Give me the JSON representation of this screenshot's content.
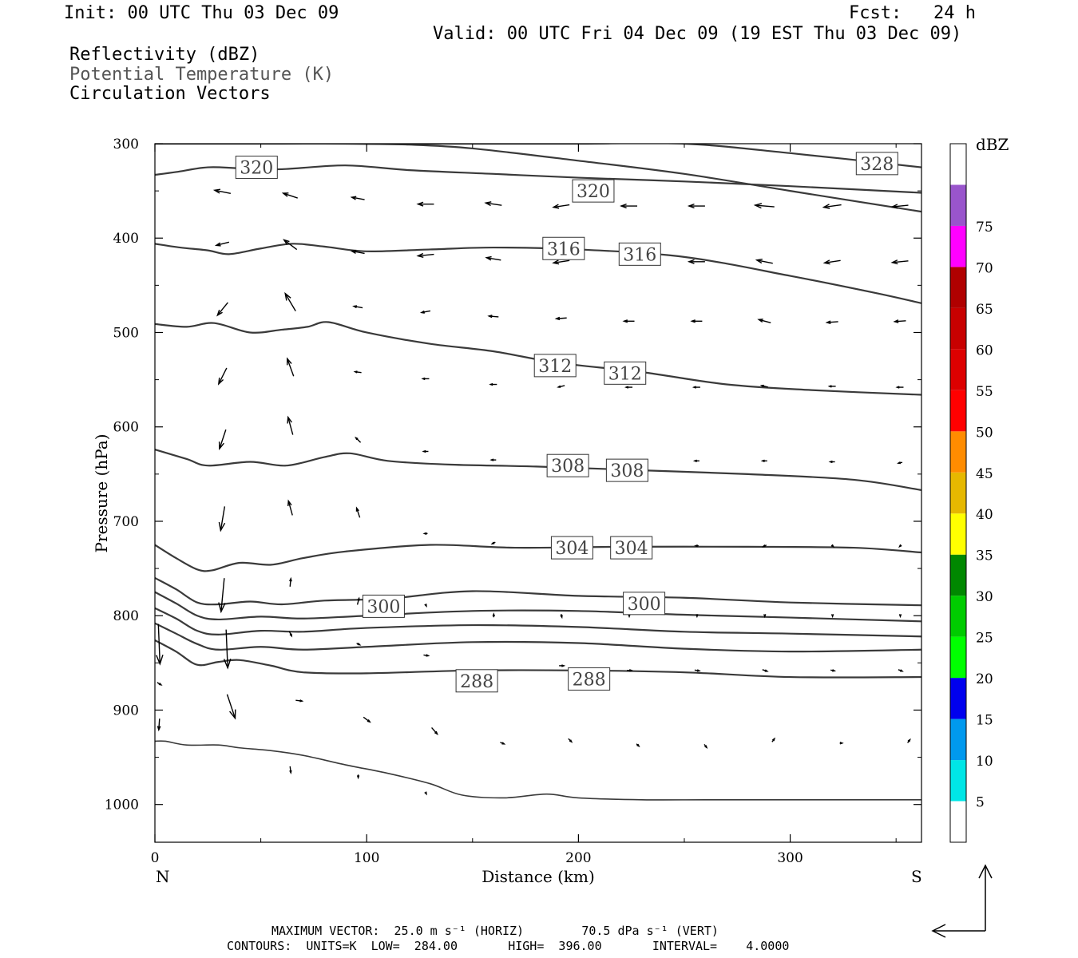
{
  "header": {
    "init": "Init: 00 UTC Thu 03 Dec 09",
    "fcst": "Fcst:   24 h",
    "valid": "Valid: 00 UTC Fri 04 Dec 09 (19 EST Thu 03 Dec 09)",
    "field1": "Reflectivity (dBZ)",
    "field2": "Potential Temperature (K)",
    "field3": "Circulation Vectors"
  },
  "footer": {
    "line1": "MAXIMUM VECTOR:  25.0 m s⁻¹ (HORIZ)        70.5 dPa s⁻¹ (VERT)",
    "line2": "CONTOURS:  UNITS=K  LOW=  284.00       HIGH=  396.00       INTERVAL=    4.0000"
  },
  "colors": {
    "contour": "#3a3a3a",
    "axis": "#000000"
  },
  "chart_data": {
    "type": "line",
    "xlabel": "Distance (km)",
    "ylabel": "Pressure (hPa)",
    "xlim": [
      0,
      362
    ],
    "ylim": [
      300,
      1040
    ],
    "y_inverted": true,
    "x_ticks": [
      "0",
      "100",
      "200",
      "300"
    ],
    "x_tick_values": [
      0,
      100,
      200,
      300
    ],
    "y_ticks": [
      "300",
      "400",
      "500",
      "600",
      "700",
      "800",
      "900",
      "1000"
    ],
    "y_tick_values": [
      300,
      400,
      500,
      600,
      700,
      800,
      900,
      1000
    ],
    "left_end_label": "N",
    "right_end_label": "S",
    "grid": false,
    "contour_labels": [
      {
        "text": "320",
        "x": 48,
        "p": 325
      },
      {
        "text": "320",
        "x": 207,
        "p": 350
      },
      {
        "text": "328",
        "x": 341,
        "p": 321
      },
      {
        "text": "316",
        "x": 193,
        "p": 411
      },
      {
        "text": "316",
        "x": 229,
        "p": 417
      },
      {
        "text": "312",
        "x": 189,
        "p": 535
      },
      {
        "text": "312",
        "x": 222,
        "p": 543
      },
      {
        "text": "308",
        "x": 195,
        "p": 641
      },
      {
        "text": "308",
        "x": 223,
        "p": 646
      },
      {
        "text": "304",
        "x": 197,
        "p": 728
      },
      {
        "text": "304",
        "x": 225,
        "p": 728
      },
      {
        "text": "300",
        "x": 108,
        "p": 790
      },
      {
        "text": "300",
        "x": 231,
        "p": 787
      },
      {
        "text": "288",
        "x": 152,
        "p": 869
      },
      {
        "text": "288",
        "x": 205,
        "p": 867
      }
    ],
    "series": [
      {
        "x": [
          0,
          10,
          25,
          40,
          60,
          90,
          120,
          160,
          200,
          250,
          300,
          362
        ],
        "y": [
          333,
          330,
          325,
          326,
          327,
          323,
          328,
          332,
          336,
          340,
          345,
          352
        ]
      },
      {
        "x": [
          0,
          30,
          60,
          90,
          120,
          150,
          200,
          250,
          300,
          362
        ],
        "y": [
          300,
          300,
          300,
          300,
          301,
          305,
          318,
          332,
          350,
          372
        ]
      },
      {
        "x": [
          115,
          160,
          200,
          250,
          300,
          362
        ],
        "y": [
          300,
          300,
          300,
          300,
          310,
          325
        ]
      },
      {
        "x": [
          0,
          12,
          25,
          35,
          50,
          65,
          80,
          100,
          130,
          160,
          200,
          250,
          300,
          340,
          362
        ],
        "y": [
          406,
          410,
          413,
          417,
          411,
          406,
          409,
          414,
          412,
          410,
          412,
          420,
          440,
          458,
          469
        ]
      },
      {
        "x": [
          0,
          15,
          28,
          45,
          60,
          72,
          82,
          100,
          130,
          160,
          190,
          230,
          270,
          310,
          362
        ],
        "y": [
          491,
          494,
          490,
          500,
          497,
          494,
          489,
          500,
          512,
          520,
          532,
          542,
          555,
          561,
          566
        ]
      },
      {
        "x": [
          0,
          15,
          25,
          45,
          62,
          80,
          92,
          110,
          140,
          180,
          230,
          280,
          330,
          362
        ],
        "y": [
          624,
          634,
          641,
          637,
          641,
          632,
          628,
          636,
          640,
          642,
          646,
          650,
          656,
          667
        ]
      },
      {
        "x": [
          0,
          10,
          20,
          27,
          40,
          55,
          70,
          90,
          130,
          170,
          220,
          280,
          330,
          362
        ],
        "y": [
          725,
          739,
          751,
          752,
          744,
          746,
          739,
          732,
          725,
          728,
          727,
          727,
          728,
          733
        ]
      },
      {
        "x": [
          0,
          10,
          20,
          30,
          45,
          60,
          80,
          110,
          150,
          200,
          250,
          300,
          362
        ],
        "y": [
          760,
          772,
          786,
          788,
          785,
          788,
          784,
          782,
          774,
          779,
          781,
          786,
          789
        ]
      },
      {
        "x": [
          0,
          10,
          20,
          30,
          50,
          70,
          100,
          150,
          200,
          250,
          300,
          362
        ],
        "y": [
          775,
          787,
          800,
          804,
          801,
          803,
          800,
          795,
          795,
          799,
          802,
          806
        ]
      },
      {
        "x": [
          0,
          10,
          20,
          30,
          50,
          70,
          100,
          150,
          200,
          250,
          300,
          362
        ],
        "y": [
          792,
          803,
          816,
          820,
          816,
          817,
          813,
          810,
          812,
          817,
          819,
          822
        ]
      },
      {
        "x": [
          0,
          10,
          20,
          30,
          50,
          70,
          100,
          150,
          200,
          250,
          300,
          362
        ],
        "y": [
          808,
          819,
          830,
          836,
          833,
          836,
          833,
          828,
          829,
          835,
          838,
          836
        ]
      },
      {
        "x": [
          0,
          10,
          20,
          30,
          40,
          55,
          70,
          100,
          150,
          200,
          250,
          300,
          362
        ],
        "y": [
          826,
          838,
          852,
          849,
          847,
          853,
          860,
          861,
          858,
          858,
          860,
          865,
          865
        ]
      },
      {
        "x": [
          0,
          5,
          15,
          30,
          40,
          55,
          70,
          90,
          110,
          130,
          145,
          165,
          185,
          200,
          230,
          260,
          300,
          362
        ],
        "y": [
          933,
          933,
          937,
          937,
          940,
          943,
          948,
          958,
          967,
          978,
          990,
          993,
          989,
          993,
          995,
          995,
          995,
          995
        ]
      }
    ],
    "vectors": [
      {
        "x": 32,
        "p": 351,
        "u": -20,
        "w": -4
      },
      {
        "x": 64,
        "p": 355,
        "u": -18,
        "w": -6
      },
      {
        "x": 96,
        "p": 358,
        "u": -16,
        "w": -3
      },
      {
        "x": 128,
        "p": 364,
        "u": -20,
        "w": 0
      },
      {
        "x": 160,
        "p": 364,
        "u": -20,
        "w": -3
      },
      {
        "x": 192,
        "p": 366,
        "u": -20,
        "w": 3
      },
      {
        "x": 224,
        "p": 366,
        "u": -20,
        "w": 0
      },
      {
        "x": 256,
        "p": 366,
        "u": -20,
        "w": 0
      },
      {
        "x": 288,
        "p": 366,
        "u": -24,
        "w": -2
      },
      {
        "x": 320,
        "p": 366,
        "u": -22,
        "w": 3
      },
      {
        "x": 352,
        "p": 366,
        "u": -20,
        "w": 2
      },
      {
        "x": 32,
        "p": 406,
        "u": -16,
        "w": 4
      },
      {
        "x": 64,
        "p": 407,
        "u": -16,
        "w": -12
      },
      {
        "x": 96,
        "p": 415,
        "u": -16,
        "w": -3
      },
      {
        "x": 128,
        "p": 418,
        "u": -20,
        "w": 2
      },
      {
        "x": 160,
        "p": 422,
        "u": -18,
        "w": -3
      },
      {
        "x": 192,
        "p": 425,
        "u": -20,
        "w": 3
      },
      {
        "x": 224,
        "p": 425,
        "u": -20,
        "w": 0
      },
      {
        "x": 256,
        "p": 425,
        "u": -20,
        "w": 0
      },
      {
        "x": 288,
        "p": 425,
        "u": -20,
        "w": -4
      },
      {
        "x": 320,
        "p": 425,
        "u": -20,
        "w": 3
      },
      {
        "x": 352,
        "p": 425,
        "u": -20,
        "w": 2
      },
      {
        "x": 32,
        "p": 475,
        "u": -13,
        "w": 16
      },
      {
        "x": 64,
        "p": 468,
        "u": -13,
        "w": -22
      },
      {
        "x": 96,
        "p": 473,
        "u": -11,
        "w": -2
      },
      {
        "x": 128,
        "p": 478,
        "u": -11,
        "w": 2
      },
      {
        "x": 160,
        "p": 483,
        "u": -12,
        "w": -1
      },
      {
        "x": 192,
        "p": 485,
        "u": -13,
        "w": 1
      },
      {
        "x": 224,
        "p": 488,
        "u": -13,
        "w": 0
      },
      {
        "x": 256,
        "p": 488,
        "u": -13,
        "w": 0
      },
      {
        "x": 288,
        "p": 488,
        "u": -15,
        "w": -4
      },
      {
        "x": 320,
        "p": 489,
        "u": -14,
        "w": 1
      },
      {
        "x": 352,
        "p": 488,
        "u": -14,
        "w": 1
      },
      {
        "x": 32,
        "p": 546,
        "u": -10,
        "w": 20
      },
      {
        "x": 64,
        "p": 537,
        "u": -8,
        "w": -22
      },
      {
        "x": 96,
        "p": 542,
        "u": -8,
        "w": -1
      },
      {
        "x": 128,
        "p": 549,
        "u": -8,
        "w": 0
      },
      {
        "x": 160,
        "p": 555,
        "u": -8,
        "w": 0
      },
      {
        "x": 192,
        "p": 557,
        "u": -8,
        "w": 2
      },
      {
        "x": 224,
        "p": 558,
        "u": -8,
        "w": 0
      },
      {
        "x": 256,
        "p": 558,
        "u": -8,
        "w": 0
      },
      {
        "x": 288,
        "p": 557,
        "u": -8,
        "w": -2
      },
      {
        "x": 320,
        "p": 557,
        "u": -8,
        "w": 0
      },
      {
        "x": 352,
        "p": 558,
        "u": -8,
        "w": 0
      },
      {
        "x": 32,
        "p": 613,
        "u": -8,
        "w": 24
      },
      {
        "x": 64,
        "p": 599,
        "u": -6,
        "w": -22
      },
      {
        "x": 96,
        "p": 614,
        "u": -6,
        "w": -6
      },
      {
        "x": 128,
        "p": 626,
        "u": -6,
        "w": 0
      },
      {
        "x": 160,
        "p": 635,
        "u": -6,
        "w": 0
      },
      {
        "x": 192,
        "p": 638,
        "u": -6,
        "w": 1
      },
      {
        "x": 224,
        "p": 636,
        "u": -6,
        "w": 0
      },
      {
        "x": 256,
        "p": 636,
        "u": -6,
        "w": 0
      },
      {
        "x": 288,
        "p": 636,
        "u": -6,
        "w": 0
      },
      {
        "x": 320,
        "p": 637,
        "u": -6,
        "w": 0
      },
      {
        "x": 352,
        "p": 638,
        "u": -5,
        "w": 1
      },
      {
        "x": 32,
        "p": 697,
        "u": -5,
        "w": 30
      },
      {
        "x": 64,
        "p": 686,
        "u": -5,
        "w": -18
      },
      {
        "x": 96,
        "p": 691,
        "u": -4,
        "w": -12
      },
      {
        "x": 128,
        "p": 713,
        "u": -4,
        "w": 0
      },
      {
        "x": 160,
        "p": 723,
        "u": -4,
        "w": 2
      },
      {
        "x": 192,
        "p": 726,
        "u": -4,
        "w": 0
      },
      {
        "x": 224,
        "p": 726,
        "u": -4,
        "w": 0
      },
      {
        "x": 256,
        "p": 726,
        "u": -4,
        "w": 0
      },
      {
        "x": 288,
        "p": 726,
        "u": -4,
        "w": 2
      },
      {
        "x": 320,
        "p": 726,
        "u": 2,
        "w": 2
      },
      {
        "x": 352,
        "p": 726,
        "u": -2,
        "w": 2
      },
      {
        "x": 32,
        "p": 778,
        "u": -4,
        "w": 42
      },
      {
        "x": 64,
        "p": 765,
        "u": 1,
        "w": -10
      },
      {
        "x": 96,
        "p": 785,
        "u": 2,
        "w": -8
      },
      {
        "x": 128,
        "p": 789,
        "u": 1,
        "w": 2
      },
      {
        "x": 160,
        "p": 800,
        "u": 0,
        "w": -4
      },
      {
        "x": 192,
        "p": 800,
        "u": 1,
        "w": 4
      },
      {
        "x": 224,
        "p": 800,
        "u": 0,
        "w": 2
      },
      {
        "x": 256,
        "p": 800,
        "u": 0,
        "w": 2
      },
      {
        "x": 288,
        "p": 800,
        "u": 0,
        "w": 2
      },
      {
        "x": 320,
        "p": 800,
        "u": 0,
        "w": 2
      },
      {
        "x": 352,
        "p": 800,
        "u": 0,
        "w": 2
      },
      {
        "x": 2,
        "p": 830,
        "u": 2,
        "w": 50
      },
      {
        "x": 34,
        "p": 835,
        "u": 2,
        "w": 48
      },
      {
        "x": 64,
        "p": 819,
        "u": 3,
        "w": 6
      },
      {
        "x": 96,
        "p": 830,
        "u": 4,
        "w": 2
      },
      {
        "x": 128,
        "p": 842,
        "u": 6,
        "w": 1
      },
      {
        "x": 160,
        "p": 860,
        "u": 6,
        "w": 2
      },
      {
        "x": 192,
        "p": 853,
        "u": 6,
        "w": 0
      },
      {
        "x": 224,
        "p": 858,
        "u": 6,
        "w": 0
      },
      {
        "x": 256,
        "p": 858,
        "u": 6,
        "w": 1
      },
      {
        "x": 288,
        "p": 858,
        "u": 6,
        "w": 2
      },
      {
        "x": 320,
        "p": 858,
        "u": 5,
        "w": 1
      },
      {
        "x": 352,
        "p": 858,
        "u": 5,
        "w": 2
      },
      {
        "x": 2,
        "p": 872,
        "u": 5,
        "w": 3
      },
      {
        "x": 36,
        "p": 896,
        "u": 10,
        "w": 30
      },
      {
        "x": 68,
        "p": 890,
        "u": 8,
        "w": 1
      },
      {
        "x": 100,
        "p": 910,
        "u": 8,
        "w": 6
      },
      {
        "x": 132,
        "p": 922,
        "u": 7,
        "w": 8
      },
      {
        "x": 164,
        "p": 935,
        "u": 5,
        "w": 2
      },
      {
        "x": 196,
        "p": 932,
        "u": 4,
        "w": 4
      },
      {
        "x": 228,
        "p": 937,
        "u": 3,
        "w": 3
      },
      {
        "x": 260,
        "p": 938,
        "u": 3,
        "w": 4
      },
      {
        "x": 292,
        "p": 932,
        "u": 3,
        "w": -4
      },
      {
        "x": 324,
        "p": 935,
        "u": 3,
        "w": 0
      },
      {
        "x": 356,
        "p": 933,
        "u": 3,
        "w": -4
      },
      {
        "x": 2,
        "p": 915,
        "u": -1,
        "w": 14
      },
      {
        "x": 64,
        "p": 963,
        "u": 1,
        "w": 8
      },
      {
        "x": 96,
        "p": 970,
        "u": 0,
        "w": 4
      },
      {
        "x": 128,
        "p": 988,
        "u": 1,
        "w": 2
      }
    ]
  },
  "colorbar": {
    "title": "dBZ",
    "levels": [
      {
        "label": "",
        "color": "#ffffff"
      },
      {
        "label": "5",
        "color": "#00e6e6"
      },
      {
        "label": "10",
        "color": "#0099ee"
      },
      {
        "label": "15",
        "color": "#0000ee"
      },
      {
        "label": "20",
        "color": "#00ff00"
      },
      {
        "label": "25",
        "color": "#00cc00"
      },
      {
        "label": "30",
        "color": "#008800"
      },
      {
        "label": "35",
        "color": "#ffff00"
      },
      {
        "label": "40",
        "color": "#e6b800"
      },
      {
        "label": "45",
        "color": "#ff8c00"
      },
      {
        "label": "50",
        "color": "#ff0000"
      },
      {
        "label": "55",
        "color": "#dd0000"
      },
      {
        "label": "60",
        "color": "#c80000"
      },
      {
        "label": "65",
        "color": "#b00000"
      },
      {
        "label": "70",
        "color": "#ff00ff"
      },
      {
        "label": "75",
        "color": "#9955cc"
      },
      {
        "label": "",
        "color": "#ffffff"
      }
    ]
  }
}
